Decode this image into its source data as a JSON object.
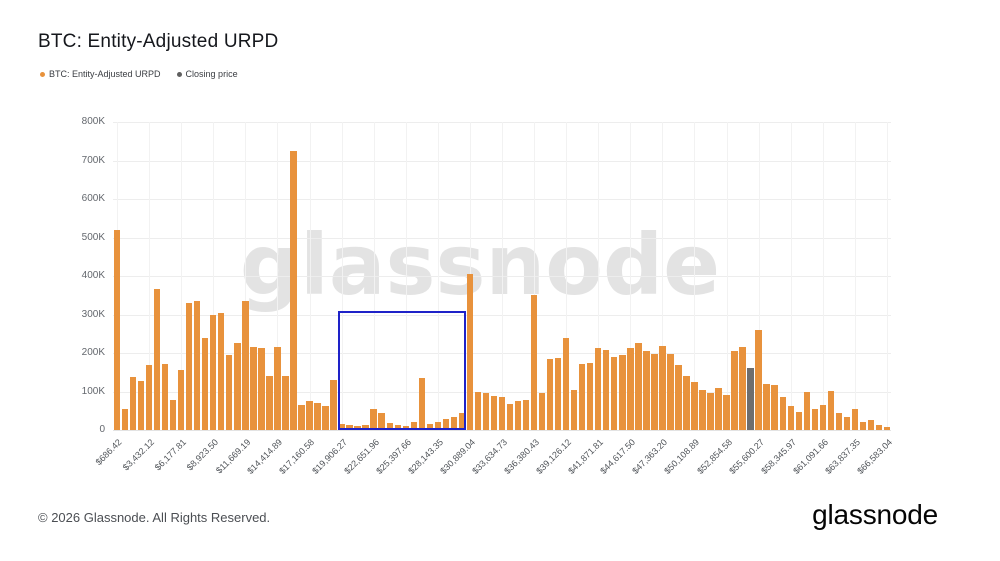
{
  "header": {
    "title": "BTC: Entity-Adjusted URPD"
  },
  "legend": [
    {
      "label": "BTC: Entity-Adjusted URPD",
      "color": "#E8923C"
    },
    {
      "label": "Closing price",
      "color": "#5F5F5F"
    }
  ],
  "watermark": "glassnode",
  "footer": {
    "copyright": "© 2026 Glassnode. All Rights Reserved.",
    "brand": "glassnode"
  },
  "chart_data": {
    "type": "bar",
    "title": "BTC: Entity-Adjusted URPD",
    "legend_position": "top-left",
    "grid": true,
    "ylim_thousands": [
      0,
      800
    ],
    "y_ticks": [
      "0",
      "100K",
      "200K",
      "300K",
      "400K",
      "500K",
      "600K",
      "700K",
      "800K"
    ],
    "x_tick_every": 4,
    "x_tick_labels": [
      "$686.42",
      "$3,432.12",
      "$6,177.81",
      "$8,923.50",
      "$11,669.19",
      "$14,414.89",
      "$17,160.58",
      "$19,906.27",
      "$22,651.96",
      "$25,397.66",
      "$28,143.35",
      "$30,889.04",
      "$33,634.73",
      "$36,380.43",
      "$39,126.12",
      "$41,871.81",
      "$44,617.50",
      "$47,363.20",
      "$50,108.89",
      "$52,854.58",
      "$55,600.27",
      "$58,345.97",
      "$61,091.66",
      "$63,837.35",
      "$66,583.04"
    ],
    "bar_color": "#E8923C",
    "closing_bar_color": "#6E6E6E",
    "closing_price_bar_index": 79,
    "values_thousands": [
      520,
      55,
      138,
      126,
      170,
      365,
      172,
      78,
      155,
      330,
      335,
      238,
      298,
      305,
      195,
      225,
      335,
      215,
      212,
      140,
      215,
      140,
      725,
      65,
      75,
      70,
      62,
      130,
      15,
      13,
      10,
      12,
      55,
      45,
      18,
      12,
      10,
      20,
      135,
      15,
      20,
      28,
      33,
      45,
      405,
      100,
      95,
      88,
      85,
      68,
      75,
      78,
      350,
      95,
      185,
      188,
      240,
      105,
      172,
      175,
      212,
      208,
      190,
      195,
      212,
      225,
      205,
      198,
      218,
      198,
      170,
      140,
      125,
      105,
      95,
      110,
      90,
      205,
      215,
      160,
      260,
      120,
      118,
      85,
      62,
      48,
      100,
      55,
      65,
      102,
      45,
      35,
      55,
      20,
      25,
      12,
      8
    ],
    "annotation_box": {
      "start_bar_index": 28,
      "end_bar_index": 44,
      "top_value_thousands": 310,
      "color": "#1E22C8",
      "covers_price_range": "$19,906.27 – $30,889.04"
    }
  }
}
